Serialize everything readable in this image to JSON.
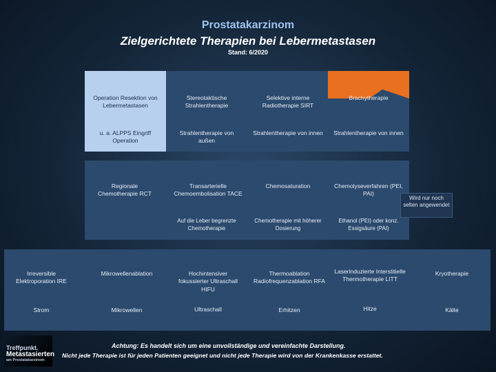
{
  "title": {
    "line1": "Prostatakarzinom",
    "line2": "Zielgerichtete Therapien bei Lebermetastasen",
    "line3": "Stand: 6/2020"
  },
  "row1": [
    "Operation Resektion von Lebermetastasen",
    "Stereotaktische Strahlentherapie",
    "Selektive interne Radiotherapie SIRT",
    "Brachytherapie"
  ],
  "row2": [
    "u. a. ALPPS Eingriff Operation",
    "Strahlentherapie von außen",
    "Strahlentherapie von innen",
    "Strahlentherapie von innen"
  ],
  "row3": [
    "Regionale Chemotherapie RCT",
    "Transarterielle Chemoembolisation TACE",
    "Chemosaturation",
    "Chemolyseverfahren (PEI, PAI)"
  ],
  "row4": [
    "Auf die Leber begrenzte Chemotherapie",
    "Chemotherapie mit höherer Dosierung",
    "Ethanol (PEI) oder konz. Essigsäure (PAI)"
  ],
  "note": "Wird nur noch selten angewendet",
  "row5": [
    "Irreversible Elektroporation IRE",
    "Mikrowellenablation",
    "Hochintensiver fokussierter Ultraschall HIFU",
    "Thermoablation Radiofrequenzablation RFA",
    "Laserinduzierte Interstitielle Thermotherapie LITT",
    "Kryotherapie"
  ],
  "row6": [
    "Strom",
    "Mikrowellen",
    "Ultraschall",
    "Erhitzen",
    "Hitze",
    "Kälte"
  ],
  "footer": {
    "line1": "Achtung: Es handelt sich um eine unvollständige und vereinfachte Darstellung.",
    "line2": "Nicht jede Therapie ist für jeden Patienten geeignet und nicht jede Therapie wird von der Krankenkasse erstattet."
  },
  "logo": {
    "line1": "Treffpunkt.",
    "line2": "Metastasierten",
    "line3": "am Prostatakarzinom"
  }
}
